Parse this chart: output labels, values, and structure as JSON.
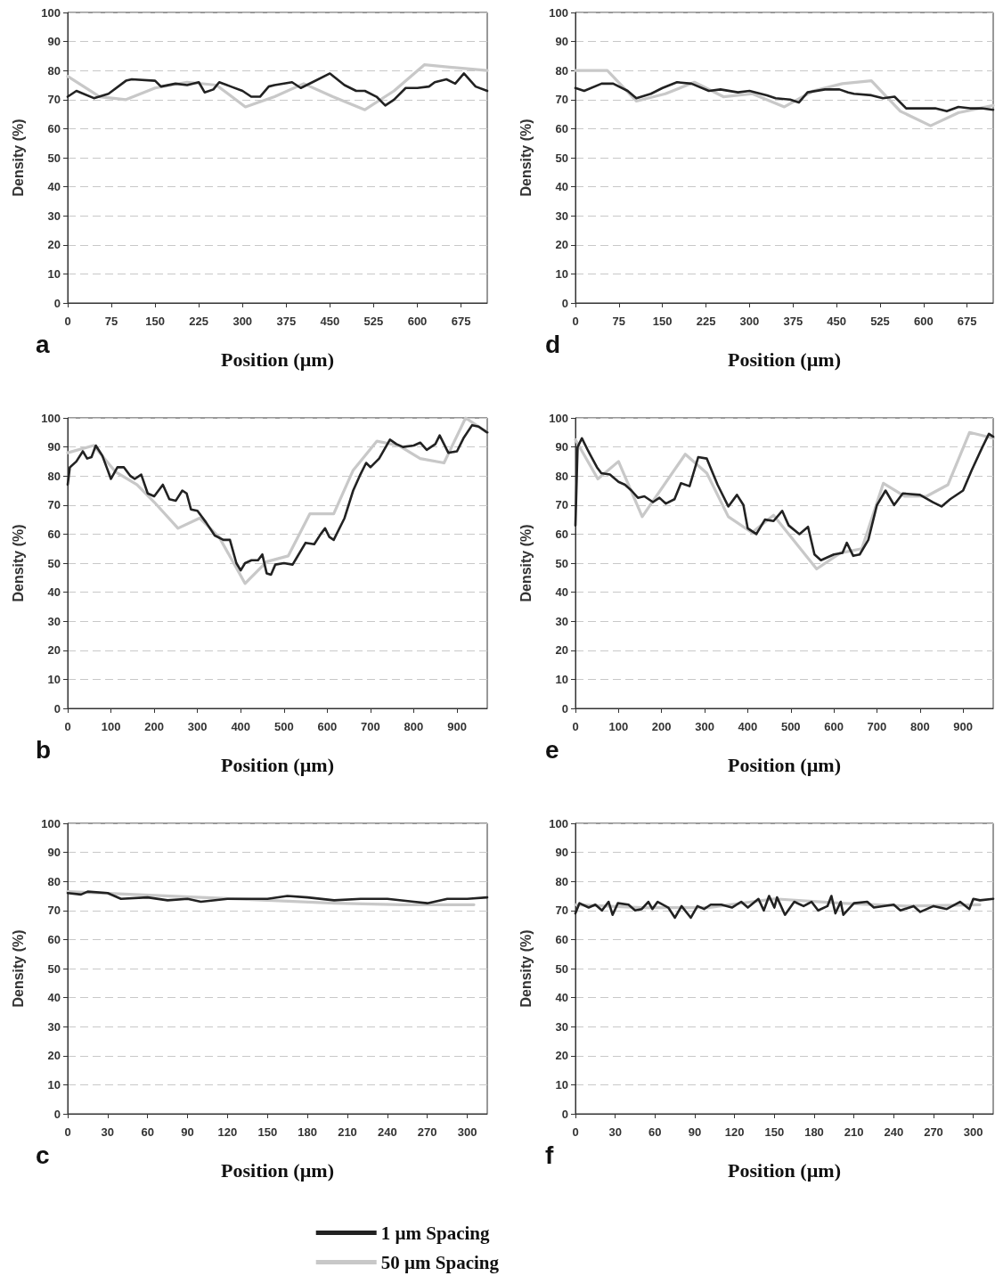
{
  "chart_data": [
    {
      "type": "line",
      "annotations": [
        "a"
      ],
      "xlabel": "Position (µm)",
      "ylabel": "Density (%)",
      "xlim": [
        0,
        720
      ],
      "xticks": [
        0,
        75,
        150,
        225,
        300,
        375,
        450,
        525,
        600,
        675
      ],
      "ylim": [
        0,
        100
      ],
      "yticks": [
        0,
        10,
        20,
        30,
        40,
        50,
        60,
        70,
        80,
        90,
        100
      ],
      "grid": "y",
      "marker": "none",
      "line_style": "solid",
      "legend": false,
      "series": [
        {
          "color": "#c8c8c8",
          "x": [
            0,
            55,
            100,
            150,
            205,
            255,
            305,
            355,
            405,
            455,
            510,
            560,
            612,
            720
          ],
          "values": [
            78,
            71,
            70,
            74,
            76,
            75,
            67.5,
            71,
            75.5,
            71,
            66.5,
            73,
            82,
            80
          ]
        },
        {
          "color": "#222222",
          "x": [
            0,
            15,
            45,
            70,
            100,
            110,
            150,
            160,
            185,
            205,
            225,
            235,
            250,
            260,
            280,
            300,
            315,
            330,
            345,
            355,
            385,
            400,
            420,
            450,
            475,
            495,
            510,
            530,
            545,
            560,
            580,
            600,
            620,
            630,
            650,
            665,
            680,
            700,
            720
          ],
          "values": [
            71,
            73,
            70.5,
            72,
            76.5,
            77,
            76.5,
            74.5,
            75.5,
            75,
            76,
            72.5,
            73.5,
            76,
            74.5,
            73,
            71,
            71,
            74.5,
            75,
            76,
            74,
            76,
            79,
            75,
            73,
            73,
            71,
            68,
            70,
            74,
            74,
            74.5,
            76,
            77,
            75.5,
            79,
            74.5,
            73
          ]
        }
      ]
    },
    {
      "type": "line",
      "annotations": [
        "b"
      ],
      "xlabel": "Position (µm)",
      "ylabel": "Density (%)",
      "xlim": [
        0,
        970
      ],
      "xticks": [
        0,
        100,
        200,
        300,
        400,
        500,
        600,
        700,
        800,
        900
      ],
      "ylim": [
        0,
        100
      ],
      "yticks": [
        0,
        10,
        20,
        30,
        40,
        50,
        60,
        70,
        80,
        90,
        100
      ],
      "grid": "y",
      "marker": "none",
      "line_style": "solid",
      "legend": false,
      "series": [
        {
          "color": "#c8c8c8",
          "x": [
            0,
            60,
            110,
            160,
            200,
            255,
            305,
            350,
            410,
            460,
            510,
            560,
            615,
            660,
            715,
            765,
            815,
            870,
            920,
            970
          ],
          "values": [
            88,
            90.5,
            81.5,
            77,
            71,
            62,
            65.5,
            59,
            43,
            50.5,
            52.5,
            67,
            67,
            82,
            92,
            90.5,
            86,
            84.5,
            100,
            95
          ]
        },
        {
          "color": "#222222",
          "x": [
            0,
            5,
            20,
            35,
            45,
            55,
            65,
            80,
            90,
            100,
            115,
            130,
            145,
            155,
            170,
            185,
            200,
            220,
            235,
            250,
            265,
            275,
            285,
            300,
            320,
            340,
            360,
            375,
            390,
            400,
            410,
            425,
            440,
            450,
            460,
            470,
            480,
            500,
            520,
            530,
            550,
            570,
            585,
            595,
            605,
            615,
            640,
            660,
            675,
            690,
            700,
            720,
            745,
            760,
            775,
            800,
            815,
            830,
            850,
            860,
            880,
            900,
            915,
            935,
            950,
            970
          ],
          "values": [
            77,
            83,
            85,
            88.5,
            86,
            86.5,
            90.5,
            87,
            83,
            79,
            83,
            83,
            80,
            79,
            80.5,
            74,
            73,
            77,
            72,
            71.5,
            75,
            74,
            68.5,
            68,
            64,
            59.5,
            58,
            58,
            50,
            47.5,
            50,
            51,
            51,
            53,
            46.5,
            46,
            49.5,
            50,
            49.5,
            52,
            57,
            56.5,
            60,
            62,
            59,
            58,
            65.5,
            75,
            80,
            84.5,
            83,
            86,
            92.5,
            91,
            90,
            90.5,
            91.5,
            89,
            91,
            94,
            88,
            88.5,
            93,
            97.5,
            97,
            95
          ]
        }
      ]
    },
    {
      "type": "line",
      "annotations": [
        "c"
      ],
      "xlabel": "Position (µm)",
      "ylabel": "Density (%)",
      "xlim": [
        0,
        315
      ],
      "xticks": [
        0,
        30,
        60,
        90,
        120,
        150,
        180,
        210,
        240,
        270,
        300
      ],
      "ylim": [
        0,
        100
      ],
      "yticks": [
        0,
        10,
        20,
        30,
        40,
        50,
        60,
        70,
        80,
        90,
        100
      ],
      "grid": "y",
      "marker": "none",
      "line_style": "solid",
      "legend": "bottom",
      "series": [
        {
          "name": "50 µm Spacing",
          "color": "#c8c8c8",
          "x": [
            0,
            50,
            100,
            150,
            200,
            250,
            305
          ],
          "values": [
            76.5,
            75.5,
            74.5,
            73.5,
            72.5,
            72,
            72
          ]
        },
        {
          "name": "1 µm Spacing",
          "color": "#222222",
          "x": [
            0,
            10,
            15,
            30,
            40,
            60,
            75,
            90,
            100,
            120,
            150,
            165,
            180,
            200,
            220,
            240,
            260,
            270,
            285,
            300,
            315
          ],
          "values": [
            76,
            75.5,
            76.5,
            76,
            74,
            74.5,
            73.5,
            74,
            73,
            74,
            74,
            75,
            74.5,
            73.5,
            74,
            74,
            73,
            72.5,
            74,
            74,
            74.5
          ]
        }
      ]
    },
    {
      "type": "line",
      "annotations": [
        "d"
      ],
      "xlabel": "Position (µm)",
      "ylabel": "Density (%)",
      "xlim": [
        0,
        720
      ],
      "xticks": [
        0,
        75,
        150,
        225,
        300,
        375,
        450,
        525,
        600,
        675
      ],
      "ylim": [
        0,
        100
      ],
      "yticks": [
        0,
        10,
        20,
        30,
        40,
        50,
        60,
        70,
        80,
        90,
        100
      ],
      "grid": "y",
      "marker": "none",
      "line_style": "solid",
      "legend": false,
      "series": [
        {
          "color": "#c8c8c8",
          "x": [
            0,
            55,
            105,
            155,
            205,
            255,
            305,
            360,
            410,
            460,
            510,
            560,
            612,
            660,
            720
          ],
          "values": [
            80,
            80,
            69.5,
            72,
            76,
            71,
            72,
            67.5,
            73,
            75.5,
            76.5,
            66,
            61,
            65.5,
            68
          ]
        },
        {
          "color": "#222222",
          "x": [
            0,
            15,
            45,
            65,
            90,
            105,
            130,
            150,
            175,
            200,
            230,
            250,
            280,
            300,
            330,
            345,
            370,
            385,
            400,
            430,
            455,
            470,
            480,
            510,
            530,
            550,
            570,
            600,
            620,
            640,
            660,
            680,
            700,
            720
          ],
          "values": [
            74,
            73,
            75.5,
            75.5,
            73,
            70.5,
            72,
            74,
            76,
            75.5,
            73,
            73.5,
            72.5,
            73,
            71.5,
            70.5,
            70,
            69,
            72.5,
            73.5,
            73.5,
            72.5,
            72,
            71.5,
            70.5,
            71,
            67,
            67,
            67,
            66,
            67.5,
            67,
            67,
            66.5
          ]
        }
      ]
    },
    {
      "type": "line",
      "annotations": [
        "e"
      ],
      "xlabel": "Position (µm)",
      "ylabel": "Density (%)",
      "xlim": [
        0,
        970
      ],
      "xticks": [
        0,
        100,
        200,
        300,
        400,
        500,
        600,
        700,
        800,
        900
      ],
      "ylim": [
        0,
        100
      ],
      "yticks": [
        0,
        10,
        20,
        30,
        40,
        50,
        60,
        70,
        80,
        90,
        100
      ],
      "grid": "y",
      "marker": "none",
      "line_style": "solid",
      "legend": false,
      "series": [
        {
          "color": "#c8c8c8",
          "x": [
            0,
            52,
            100,
            155,
            255,
            305,
            355,
            410,
            460,
            560,
            615,
            665,
            715,
            765,
            815,
            865,
            915,
            970
          ],
          "values": [
            92.5,
            79,
            85,
            66,
            87.5,
            81,
            66,
            60.5,
            66.5,
            48,
            53.5,
            55,
            77.5,
            73,
            73,
            77,
            95,
            93
          ]
        },
        {
          "color": "#222222",
          "x": [
            0,
            5,
            15,
            30,
            50,
            60,
            80,
            100,
            115,
            130,
            145,
            160,
            180,
            195,
            210,
            230,
            245,
            265,
            285,
            305,
            330,
            355,
            375,
            390,
            400,
            420,
            440,
            460,
            480,
            495,
            520,
            540,
            555,
            570,
            600,
            620,
            630,
            645,
            660,
            680,
            700,
            720,
            740,
            760,
            800,
            830,
            850,
            870,
            900,
            920,
            945,
            960,
            970
          ],
          "values": [
            63,
            90,
            93,
            88.5,
            83,
            81,
            80.5,
            78,
            77,
            75,
            72.5,
            73,
            71,
            72.5,
            70.5,
            72,
            77.5,
            76.5,
            86.5,
            86,
            77,
            69.5,
            73.5,
            70,
            62,
            60,
            65,
            64.5,
            68,
            63,
            60,
            62.5,
            53,
            51,
            53,
            53.5,
            57,
            52.5,
            53,
            58,
            70,
            75,
            70,
            74,
            73.5,
            71,
            69.5,
            72,
            75,
            82,
            90,
            94.5,
            93.5
          ]
        }
      ]
    },
    {
      "type": "line",
      "annotations": [
        "f"
      ],
      "xlabel": "Position (µm)",
      "ylabel": "Density (%)",
      "xlim": [
        0,
        315
      ],
      "xticks": [
        0,
        30,
        60,
        90,
        120,
        150,
        180,
        210,
        240,
        270,
        300
      ],
      "ylim": [
        0,
        100
      ],
      "yticks": [
        0,
        10,
        20,
        30,
        40,
        50,
        60,
        70,
        80,
        90,
        100
      ],
      "grid": "y",
      "marker": "none",
      "line_style": "solid",
      "legend": false,
      "series": [
        {
          "color": "#c8c8c8",
          "x": [
            0,
            50,
            100,
            150,
            200,
            250,
            305
          ],
          "values": [
            72,
            71,
            71,
            74,
            72.5,
            71.5,
            72
          ]
        },
        {
          "color": "#222222",
          "x": [
            0,
            3,
            10,
            15,
            20,
            25,
            28,
            32,
            40,
            45,
            50,
            55,
            58,
            62,
            70,
            75,
            80,
            87,
            92,
            97,
            102,
            110,
            118,
            125,
            130,
            138,
            142,
            146,
            150,
            152,
            158,
            165,
            172,
            178,
            183,
            190,
            193,
            196,
            200,
            202,
            210,
            220,
            225,
            240,
            245,
            255,
            260,
            270,
            280,
            290,
            297,
            300,
            305,
            315
          ],
          "values": [
            69,
            72.5,
            71,
            72,
            70,
            73,
            68.5,
            72.5,
            72,
            70,
            70.5,
            73,
            70.5,
            73,
            71,
            67.5,
            71.5,
            67.5,
            71.5,
            70.5,
            72,
            72,
            71,
            73,
            71,
            74,
            70,
            75,
            71,
            74.5,
            68.5,
            73,
            71.5,
            73,
            70,
            71.5,
            75,
            69,
            73,
            68.5,
            72.5,
            73,
            71,
            72,
            70,
            71.5,
            69.5,
            71.5,
            70.5,
            73,
            70.5,
            74,
            73.5,
            74
          ]
        }
      ]
    }
  ]
}
